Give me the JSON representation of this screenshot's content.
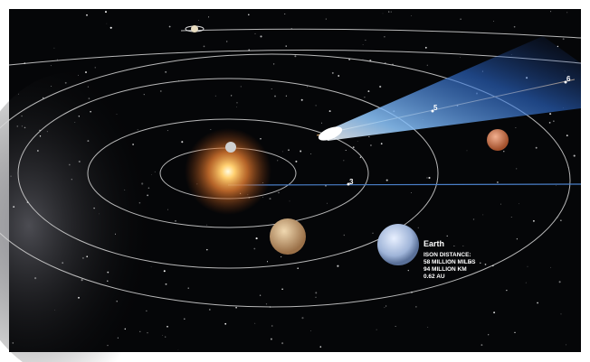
{
  "label": {
    "planet": "Earth",
    "heading": "ISON DISTANCE:",
    "lines": [
      "58 MILLION MILES",
      "94 MILLION KM",
      "0.62 AU"
    ]
  },
  "orbit_markers": [
    "3",
    "5",
    "6"
  ]
}
